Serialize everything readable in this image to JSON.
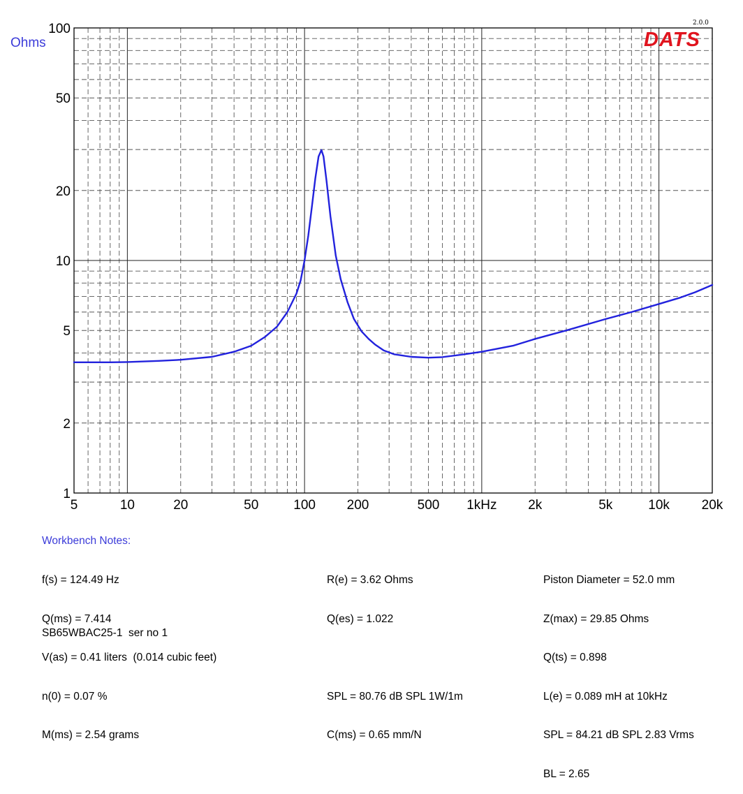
{
  "chart_data": {
    "type": "line",
    "title": "",
    "xlabel": "",
    "ylabel": "Ohms",
    "x_scale": "log",
    "y_scale": "log",
    "xlim": [
      5,
      20000
    ],
    "ylim": [
      1,
      100
    ],
    "grid": true,
    "x_ticks": [
      {
        "value": 5,
        "label": "5"
      },
      {
        "value": 10,
        "label": "10"
      },
      {
        "value": 20,
        "label": "20"
      },
      {
        "value": 50,
        "label": "50"
      },
      {
        "value": 100,
        "label": "100"
      },
      {
        "value": 200,
        "label": "200"
      },
      {
        "value": 500,
        "label": "500"
      },
      {
        "value": 1000,
        "label": "1kHz"
      },
      {
        "value": 2000,
        "label": "2k"
      },
      {
        "value": 5000,
        "label": "5k"
      },
      {
        "value": 10000,
        "label": "10k"
      },
      {
        "value": 20000,
        "label": "20k"
      }
    ],
    "y_ticks": [
      {
        "value": 1,
        "label": "1"
      },
      {
        "value": 2,
        "label": "2"
      },
      {
        "value": 5,
        "label": "5"
      },
      {
        "value": 10,
        "label": "10"
      },
      {
        "value": 20,
        "label": "20"
      },
      {
        "value": 50,
        "label": "50"
      },
      {
        "value": 100,
        "label": "100"
      }
    ],
    "series": [
      {
        "color": "#2222dd",
        "x": [
          5,
          8,
          10,
          15,
          20,
          30,
          40,
          50,
          60,
          70,
          80,
          90,
          95,
          100,
          105,
          110,
          115,
          120,
          124.5,
          128,
          133,
          140,
          150,
          160,
          175,
          190,
          210,
          230,
          250,
          280,
          320,
          400,
          500,
          600,
          800,
          1000,
          1500,
          2000,
          3000,
          5000,
          7000,
          10000,
          13000,
          16000,
          20000
        ],
        "y": [
          3.65,
          3.65,
          3.66,
          3.7,
          3.74,
          3.85,
          4.05,
          4.3,
          4.7,
          5.2,
          6.0,
          7.2,
          8.2,
          10.0,
          12.8,
          17.0,
          22.5,
          28.0,
          29.85,
          28.0,
          22.0,
          15.5,
          10.5,
          8.3,
          6.6,
          5.6,
          4.95,
          4.6,
          4.35,
          4.1,
          3.95,
          3.85,
          3.82,
          3.84,
          3.95,
          4.05,
          4.3,
          4.6,
          5.0,
          5.6,
          6.0,
          6.5,
          6.9,
          7.3,
          7.85
        ]
      }
    ]
  },
  "logo": {
    "version": "2.0.0",
    "name": "DATS"
  },
  "notes": {
    "title": "Workbench Notes:",
    "col1": [
      "f(s) = 124.49 Hz",
      "Q(ms) = 7.414",
      "V(as) = 0.41 liters  (0.014 cubic feet)",
      "n(0) = 0.07 %",
      "M(ms) = 2.54 grams"
    ],
    "col2": [
      "R(e) = 3.62 Ohms",
      "Q(es) = 1.022",
      "",
      "SPL = 80.76 dB SPL 1W/1m",
      "C(ms) = 0.65 mm/N"
    ],
    "col3": [
      "Piston Diameter = 52.0 mm",
      "Z(max) = 29.85 Ohms",
      "Q(ts) = 0.898",
      "L(e) = 0.089 mH at 10kHz",
      "SPL = 84.21 dB SPL 2.83 Vrms",
      "BL = 2.65"
    ],
    "footer": "SB65WBAC25-1  ser no 1"
  }
}
